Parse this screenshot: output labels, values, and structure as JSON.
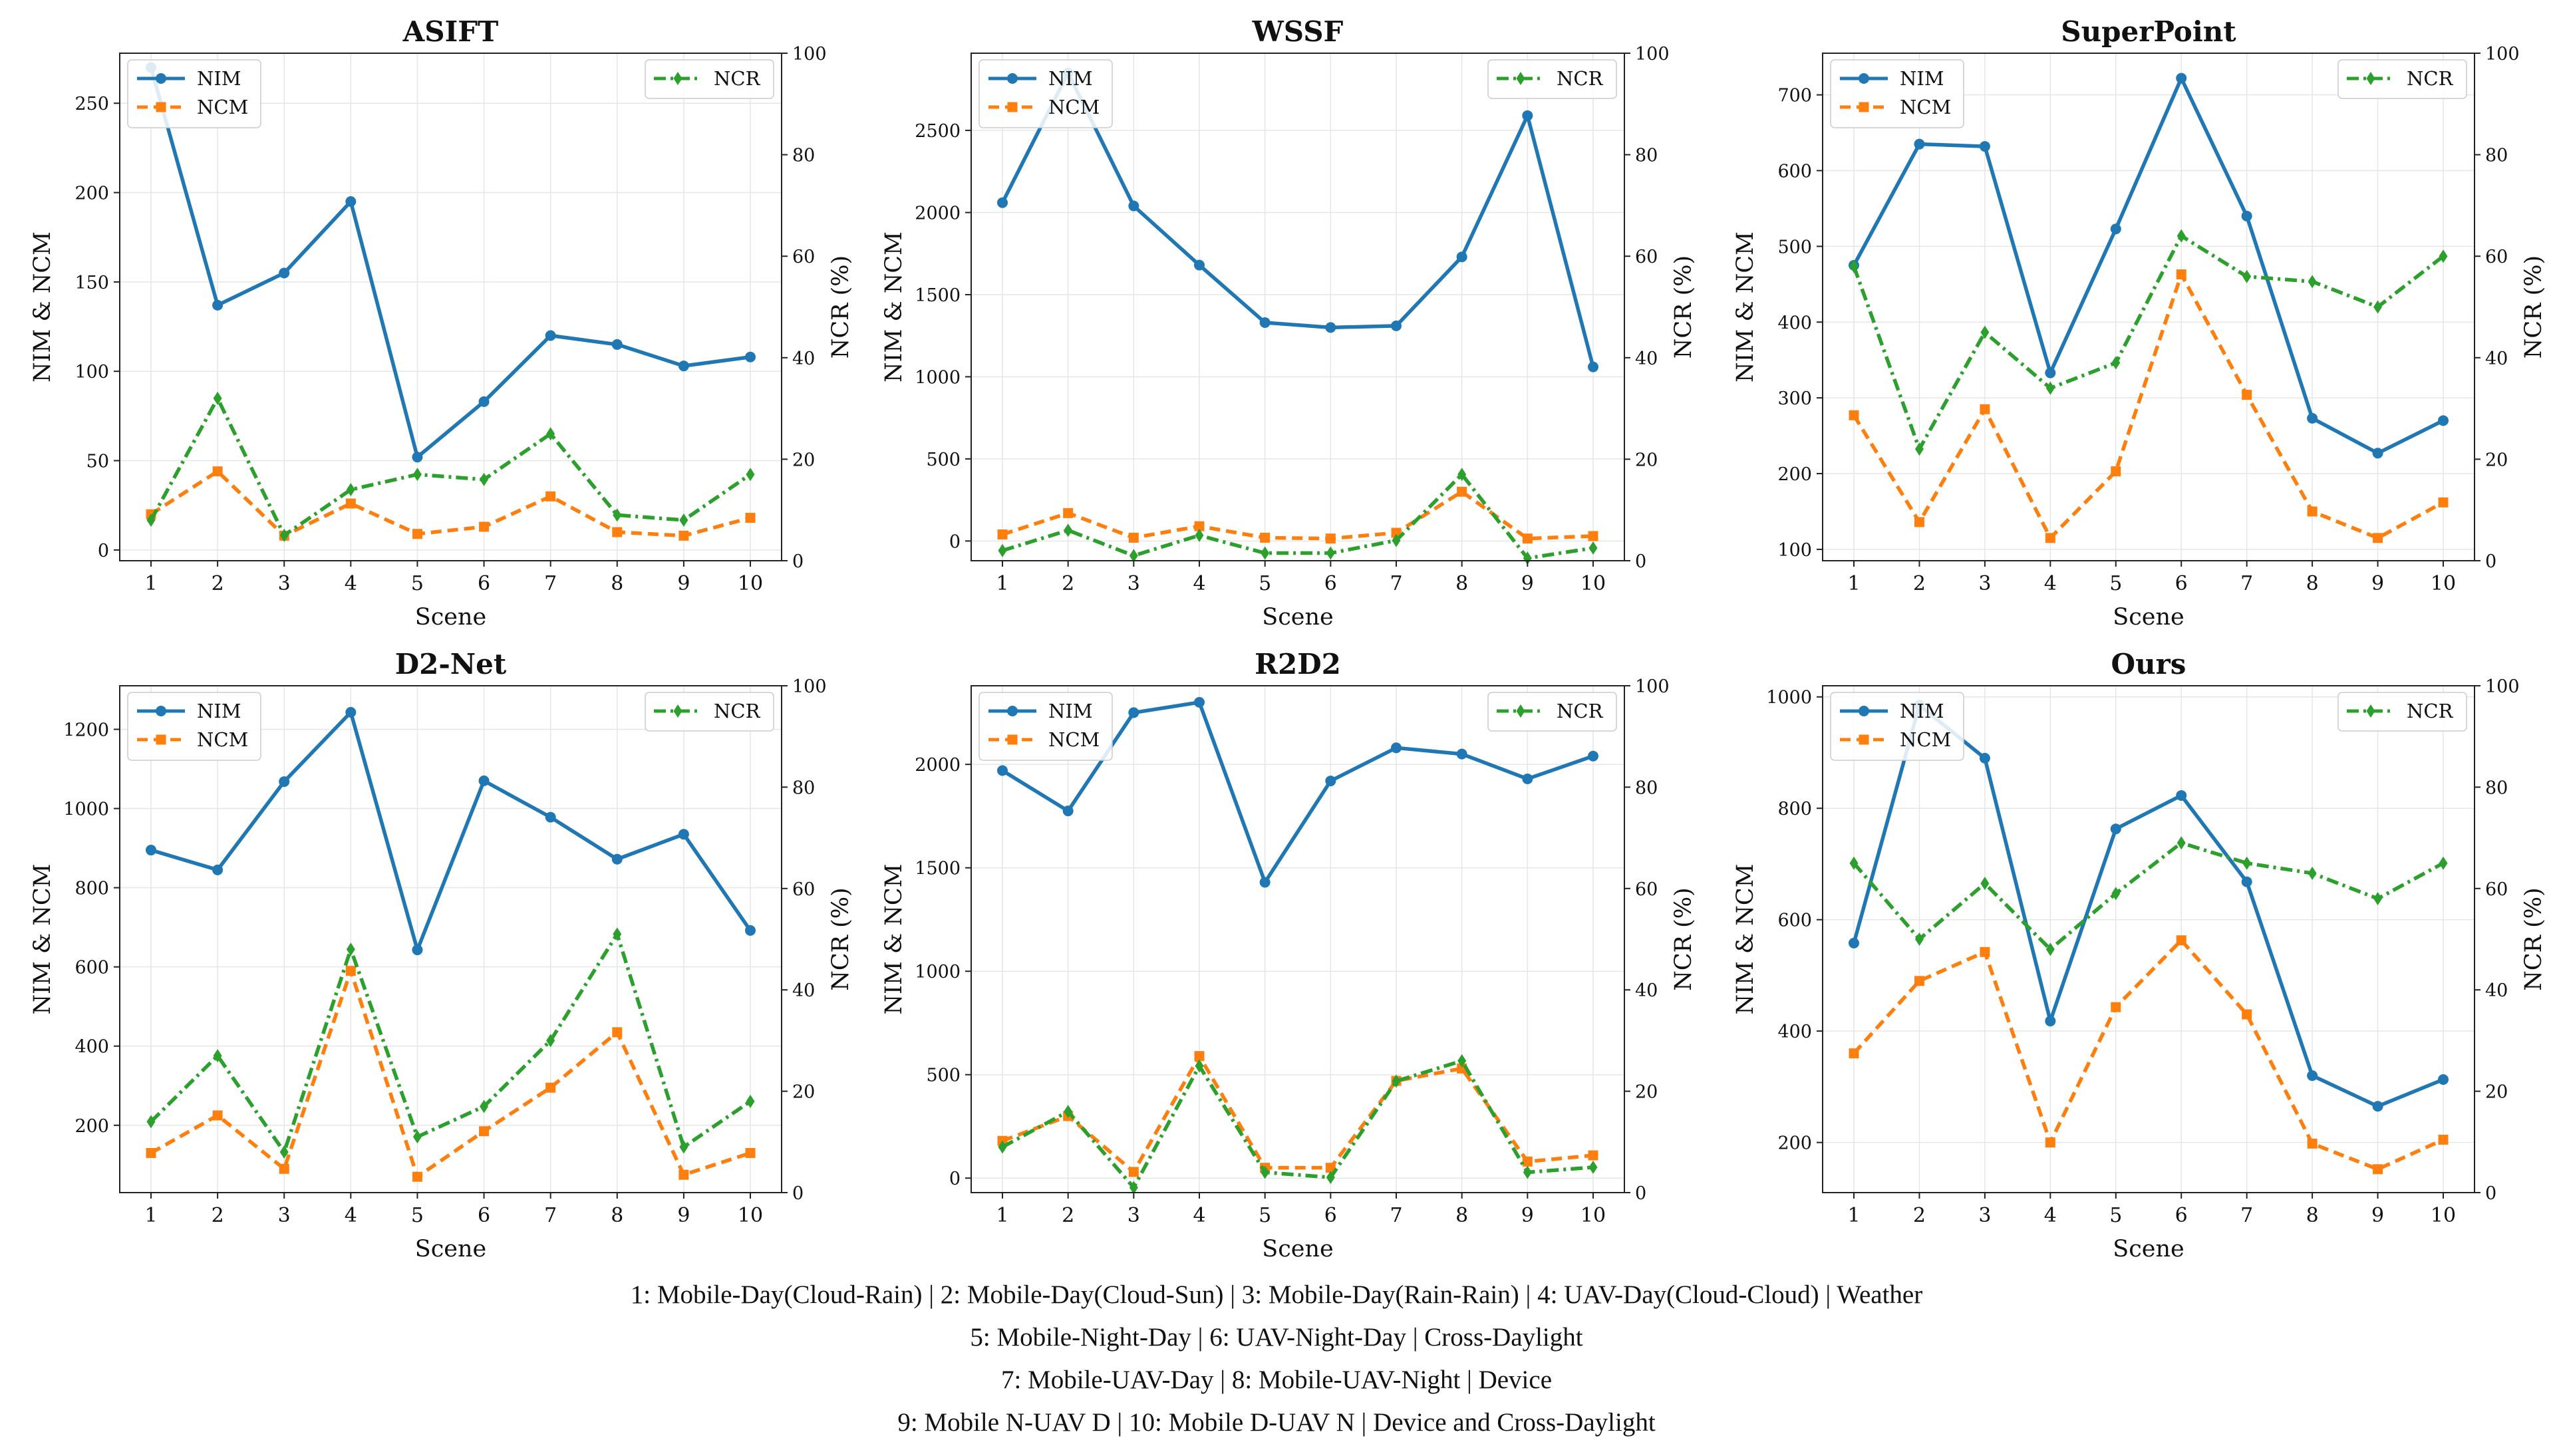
{
  "colors": {
    "nim": "#1f77b4",
    "ncm": "#ff7f0e",
    "ncr": "#2ca02c",
    "grid": "#e6e6e6",
    "axis": "#222222"
  },
  "chart_data": [
    {
      "type": "line",
      "title": "ASIFT",
      "xlabel": "Scene",
      "ylabel_left": "NIM & NCM",
      "ylabel_right": "NCR (%)",
      "x": [
        1,
        2,
        3,
        4,
        5,
        6,
        7,
        8,
        9,
        10
      ],
      "ylim_left": [
        -6,
        278
      ],
      "yticks_left": [
        0,
        50,
        100,
        150,
        200,
        250
      ],
      "ylim_right": [
        0,
        100
      ],
      "yticks_right": [
        0,
        20,
        40,
        60,
        80,
        100
      ],
      "series": [
        {
          "name": "NIM",
          "axis": "left",
          "values": [
            270,
            137,
            155,
            195,
            52,
            83,
            120,
            115,
            103,
            108
          ]
        },
        {
          "name": "NCM",
          "axis": "left",
          "values": [
            20,
            44,
            8,
            26,
            9,
            13,
            30,
            10,
            8,
            18
          ]
        },
        {
          "name": "NCR",
          "axis": "right",
          "values": [
            8,
            32,
            5,
            14,
            17,
            16,
            25,
            9,
            8,
            17
          ]
        }
      ]
    },
    {
      "type": "line",
      "title": "WSSF",
      "xlabel": "Scene",
      "ylabel_left": "NIM & NCM",
      "ylabel_right": "NCR (%)",
      "x": [
        1,
        2,
        3,
        4,
        5,
        6,
        7,
        8,
        9,
        10
      ],
      "ylim_left": [
        -120,
        2970
      ],
      "yticks_left": [
        0,
        500,
        1000,
        1500,
        2000,
        2500
      ],
      "ylim_right": [
        0,
        100
      ],
      "yticks_right": [
        0,
        20,
        40,
        60,
        80,
        100
      ],
      "series": [
        {
          "name": "NIM",
          "axis": "left",
          "values": [
            2060,
            2850,
            2040,
            1680,
            1330,
            1300,
            1310,
            1730,
            2590,
            1060
          ]
        },
        {
          "name": "NCM",
          "axis": "left",
          "values": [
            40,
            170,
            20,
            90,
            20,
            15,
            50,
            300,
            15,
            30
          ]
        },
        {
          "name": "NCR",
          "axis": "right",
          "values": [
            2,
            6,
            1,
            5,
            1.5,
            1.5,
            4,
            17,
            0.5,
            2.5
          ]
        }
      ]
    },
    {
      "type": "line",
      "title": "SuperPoint",
      "xlabel": "Scene",
      "ylabel_left": "NIM & NCM",
      "ylabel_right": "NCR (%)",
      "x": [
        1,
        2,
        3,
        4,
        5,
        6,
        7,
        8,
        9,
        10
      ],
      "ylim_left": [
        85,
        755
      ],
      "yticks_left": [
        100,
        200,
        300,
        400,
        500,
        600,
        700
      ],
      "ylim_right": [
        0,
        100
      ],
      "yticks_right": [
        0,
        20,
        40,
        60,
        80,
        100
      ],
      "series": [
        {
          "name": "NIM",
          "axis": "left",
          "values": [
            475,
            635,
            632,
            333,
            523,
            722,
            540,
            273,
            227,
            270
          ]
        },
        {
          "name": "NCM",
          "axis": "left",
          "values": [
            277,
            136,
            285,
            115,
            203,
            463,
            304,
            150,
            115,
            162
          ]
        },
        {
          "name": "NCR",
          "axis": "right",
          "values": [
            58,
            22,
            45,
            34,
            39,
            64,
            56,
            55,
            50,
            60
          ]
        }
      ]
    },
    {
      "type": "line",
      "title": "D2-Net",
      "xlabel": "Scene",
      "ylabel_left": "NIM & NCM",
      "ylabel_right": "NCR (%)",
      "x": [
        1,
        2,
        3,
        4,
        5,
        6,
        7,
        8,
        9,
        10
      ],
      "ylim_left": [
        30,
        1310
      ],
      "yticks_left": [
        200,
        400,
        600,
        800,
        1000,
        1200
      ],
      "ylim_right": [
        0,
        100
      ],
      "yticks_right": [
        0,
        20,
        40,
        60,
        80,
        100
      ],
      "series": [
        {
          "name": "NIM",
          "axis": "left",
          "values": [
            895,
            845,
            1068,
            1243,
            643,
            1070,
            978,
            872,
            935,
            692
          ]
        },
        {
          "name": "NCM",
          "axis": "left",
          "values": [
            130,
            225,
            90,
            590,
            70,
            185,
            295,
            435,
            75,
            130
          ]
        },
        {
          "name": "NCR",
          "axis": "right",
          "values": [
            14,
            27,
            8,
            48,
            11,
            17,
            30,
            51,
            9,
            18
          ]
        }
      ]
    },
    {
      "type": "line",
      "title": "R2D2",
      "xlabel": "Scene",
      "ylabel_left": "NIM & NCM",
      "ylabel_right": "NCR (%)",
      "x": [
        1,
        2,
        3,
        4,
        5,
        6,
        7,
        8,
        9,
        10
      ],
      "ylim_left": [
        -70,
        2380
      ],
      "yticks_left": [
        0,
        500,
        1000,
        1500,
        2000
      ],
      "ylim_right": [
        0,
        100
      ],
      "yticks_right": [
        0,
        20,
        40,
        60,
        80,
        100
      ],
      "series": [
        {
          "name": "NIM",
          "axis": "left",
          "values": [
            1970,
            1775,
            2250,
            2300,
            1430,
            1920,
            2080,
            2050,
            1930,
            2040
          ]
        },
        {
          "name": "NCM",
          "axis": "left",
          "values": [
            180,
            300,
            30,
            590,
            50,
            50,
            470,
            530,
            80,
            110
          ]
        },
        {
          "name": "NCR",
          "axis": "right",
          "values": [
            9,
            16,
            1,
            25,
            4,
            3,
            22,
            26,
            4,
            5
          ]
        }
      ]
    },
    {
      "type": "line",
      "title": "Ours",
      "xlabel": "Scene",
      "ylabel_left": "NIM & NCM",
      "ylabel_right": "NCR (%)",
      "x": [
        1,
        2,
        3,
        4,
        5,
        6,
        7,
        8,
        9,
        10
      ],
      "ylim_left": [
        110,
        1020
      ],
      "yticks_left": [
        200,
        400,
        600,
        800,
        1000
      ],
      "ylim_right": [
        0,
        100
      ],
      "yticks_right": [
        0,
        20,
        40,
        60,
        80,
        100
      ],
      "series": [
        {
          "name": "NIM",
          "axis": "left",
          "values": [
            558,
            985,
            890,
            418,
            763,
            823,
            668,
            320,
            265,
            313
          ]
        },
        {
          "name": "NCM",
          "axis": "left",
          "values": [
            360,
            490,
            542,
            200,
            443,
            563,
            430,
            198,
            152,
            205
          ]
        },
        {
          "name": "NCR",
          "axis": "right",
          "values": [
            65,
            50,
            61,
            48,
            59,
            69,
            65,
            63,
            58,
            65
          ]
        }
      ]
    }
  ],
  "caption": {
    "lines": [
      "1: Mobile-Day(Cloud-Rain)  |  2: Mobile-Day(Cloud-Sun)  |  3: Mobile-Day(Rain-Rain)  |  4: UAV-Day(Cloud-Cloud)  |  Weather",
      "5: Mobile-Night-Day  |  6: UAV-Night-Day  |  Cross-Daylight",
      "7: Mobile-UAV-Day  |  8: Mobile-UAV-Night  |  Device",
      "9: Mobile N-UAV D  |  10: Mobile D-UAV N  |  Device and Cross-Daylight"
    ]
  }
}
